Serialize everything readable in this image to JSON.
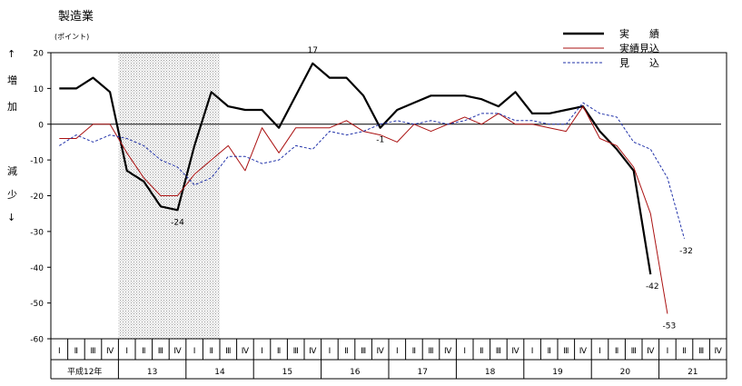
{
  "chart_data": {
    "type": "line",
    "title": "製造業",
    "unit_label": "(ポイント)",
    "side_labels": {
      "up_arrow": "↑",
      "increase": [
        "増",
        "加"
      ],
      "decrease": [
        "減",
        "少"
      ],
      "down_arrow": "↓"
    },
    "ylim": [
      -60,
      20
    ],
    "yticks": [
      20,
      10,
      0,
      -10,
      -20,
      -30,
      -40,
      -50,
      -60
    ],
    "quarter_labels": [
      "Ⅰ",
      "Ⅱ",
      "Ⅲ",
      "Ⅳ"
    ],
    "year_labels": [
      "平成12年",
      "13",
      "14",
      "15",
      "16",
      "17",
      "18",
      "19",
      "20",
      "21"
    ],
    "shaded_region": {
      "from_index": 4,
      "to_index": 9
    },
    "legend": {
      "placement": "top-right"
    },
    "series": [
      {
        "name": "実　　績",
        "color": "#000000",
        "style": "solid-thick",
        "values": [
          10,
          10,
          13,
          9,
          -13,
          -16,
          -23,
          -24,
          -6,
          9,
          5,
          4,
          4,
          -1,
          8,
          17,
          13,
          13,
          8,
          -1,
          4,
          6,
          8,
          8,
          8,
          7,
          5,
          9,
          3,
          3,
          4,
          5,
          -2,
          -7,
          -13,
          -42,
          null,
          null,
          null,
          null
        ]
      },
      {
        "name": "実績見込",
        "color": "#aa1111",
        "style": "solid-thin",
        "values": [
          -4,
          -4,
          0,
          0,
          -8,
          -15,
          -20,
          -20,
          -14,
          -10,
          -6,
          -13,
          -1,
          -8,
          -1,
          -1,
          -1,
          1,
          -2,
          -3,
          -5,
          0,
          -2,
          0,
          2,
          0,
          3,
          0,
          0,
          -1,
          -2,
          5,
          -4,
          -6,
          -12,
          -25,
          -53,
          null,
          null,
          null
        ]
      },
      {
        "name": "見　　込",
        "color": "#2233aa",
        "style": "dashed",
        "values": [
          -6,
          -3,
          -5,
          -3,
          -4,
          -6,
          -10,
          -12,
          -17,
          -15,
          -9,
          -9,
          -11,
          -10,
          -6,
          -7,
          -2,
          -3,
          -2,
          0,
          1,
          0,
          1,
          0,
          1,
          3,
          3,
          1,
          1,
          0,
          0,
          6,
          3,
          2,
          -5,
          -7,
          -15,
          -32,
          null,
          null
        ]
      }
    ],
    "annotations": [
      {
        "text": "17",
        "index": 15,
        "value": 17,
        "position": "above"
      },
      {
        "text": "-24",
        "index": 7,
        "value": -24,
        "position": "below"
      },
      {
        "text": "-1",
        "index": 19,
        "value": -1,
        "position": "below"
      },
      {
        "text": "-42",
        "index": 35,
        "value": -42,
        "position": "below"
      },
      {
        "text": "-53",
        "index": 36,
        "value": -53,
        "position": "below"
      },
      {
        "text": "-32",
        "index": 37,
        "value": -32,
        "position": "below"
      }
    ]
  }
}
